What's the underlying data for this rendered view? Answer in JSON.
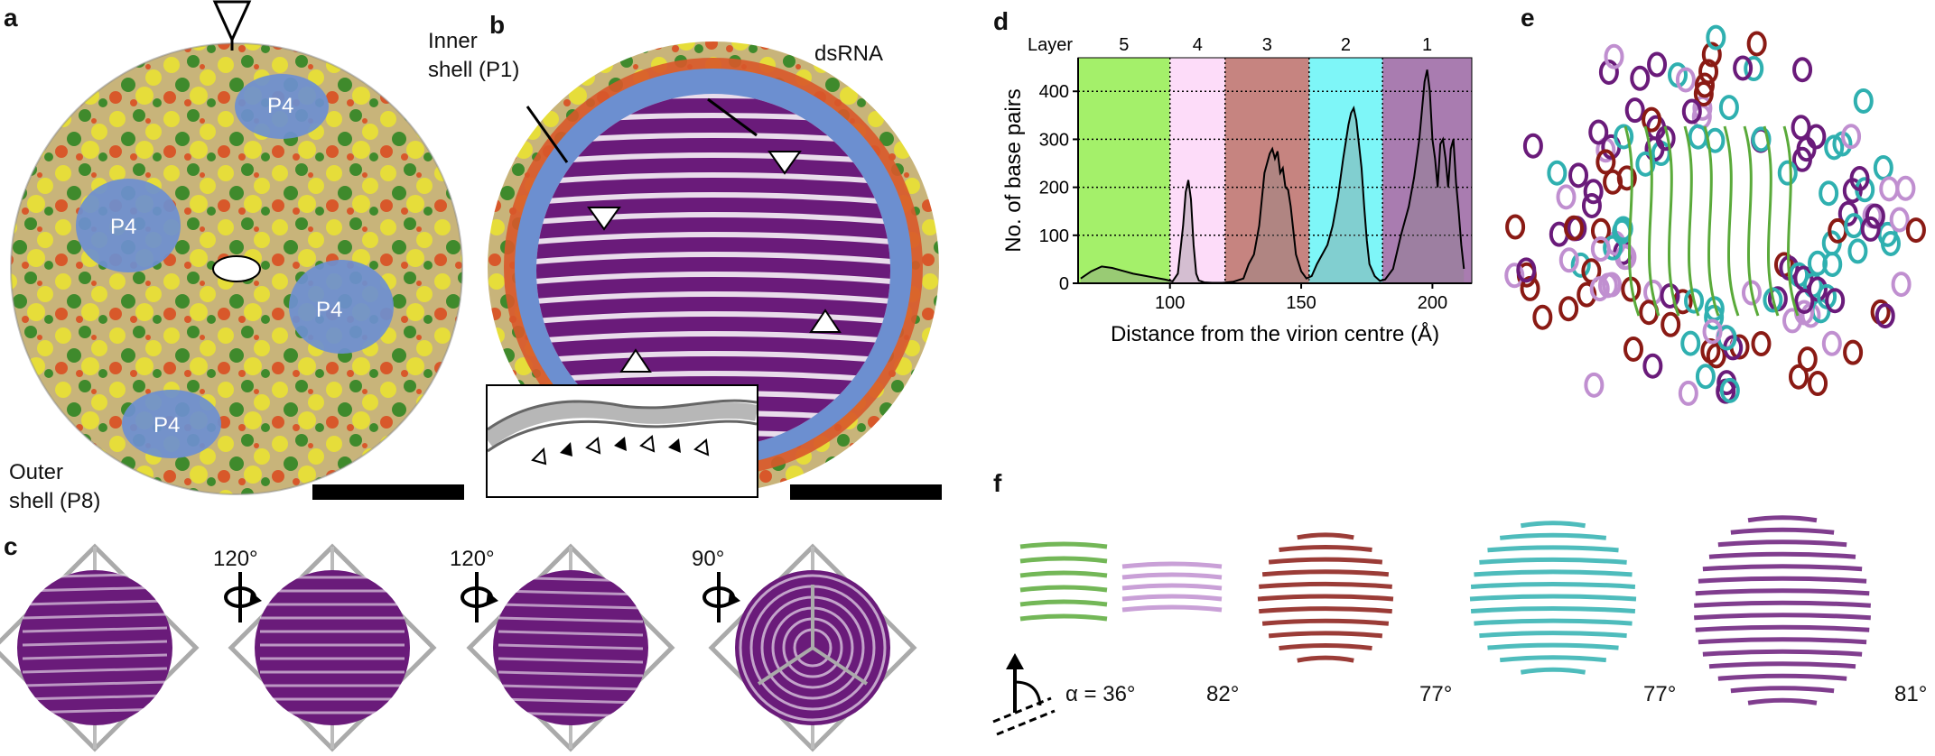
{
  "figure": {
    "panels": {
      "a": {
        "letter": "a",
        "p4_labels": [
          "P4",
          "P4",
          "P4",
          "P4"
        ],
        "outer_shell": [
          "Outer",
          "shell (P8)"
        ]
      },
      "b": {
        "letter": "b",
        "inner_shell": [
          "Inner",
          "shell (P1)"
        ],
        "dsrna": "dsRNA"
      },
      "c": {
        "letter": "c",
        "angles": [
          "120°",
          "120°",
          "90°"
        ]
      },
      "d": {
        "letter": "d"
      },
      "e": {
        "letter": "e"
      },
      "f": {
        "letter": "f",
        "alpha_prefix": "α = 36°",
        "angles": [
          "82°",
          "77°",
          "77°",
          "81°"
        ]
      }
    },
    "colors": {
      "dsrna_purple": "#6a1b7a",
      "p4_blue": "#6c8fd0",
      "yellow": "#e6dd3a",
      "green": "#3f8a2c",
      "orange": "#d8582a",
      "tan": "#c8b47a",
      "green_helix": "#5aaa3a",
      "lilac_helix": "#c08fd0",
      "maroon_helix": "#8a1a14",
      "teal_helix": "#2fb0b0"
    }
  },
  "chart_data": {
    "type": "area",
    "title": "",
    "layer_header": "Layer",
    "layers": [
      {
        "label": "5",
        "from": 65,
        "to": 100,
        "color": "#a4f06a"
      },
      {
        "label": "4",
        "from": 100,
        "to": 121,
        "color": "#fddcf9"
      },
      {
        "label": "3",
        "from": 121,
        "to": 153,
        "color": "#c68480"
      },
      {
        "label": "2",
        "from": 153,
        "to": 181,
        "color": "#7ef6f8"
      },
      {
        "label": "1",
        "from": 181,
        "to": 215,
        "color": "#a97cb0"
      }
    ],
    "xlabel": "Distance from the virion centre (Å)",
    "ylabel": "No. of base pairs",
    "xlim": [
      65,
      215
    ],
    "ylim": [
      0,
      470
    ],
    "xticks": [
      100,
      150,
      200
    ],
    "yticks": [
      0,
      100,
      200,
      300,
      400
    ],
    "grid": "horizontal dotted at y ticks, vertical dotted at layer boundaries",
    "series": [
      {
        "x": [
          66,
          70,
          74,
          78,
          82,
          86,
          90,
          94,
          98,
          101,
          103,
          105,
          106,
          107,
          108,
          109,
          110,
          111,
          113,
          116,
          120,
          124,
          128,
          130,
          132,
          134,
          136,
          138,
          139,
          140,
          141,
          142,
          143,
          144,
          145,
          146,
          147,
          148,
          150,
          152,
          154,
          156,
          158,
          160,
          162,
          164,
          166,
          168,
          169,
          170,
          171,
          172,
          173,
          174,
          175,
          176,
          178,
          180,
          182,
          185,
          188,
          191,
          193,
          195,
          196,
          197,
          198,
          199,
          200,
          201,
          202,
          203,
          204,
          205,
          206,
          207,
          208,
          209,
          210,
          211,
          212
        ],
        "y": [
          10,
          25,
          35,
          32,
          26,
          20,
          16,
          12,
          8,
          4,
          20,
          120,
          190,
          215,
          175,
          80,
          20,
          6,
          2,
          1,
          1,
          3,
          10,
          40,
          60,
          120,
          230,
          270,
          280,
          260,
          275,
          230,
          240,
          200,
          195,
          160,
          110,
          60,
          25,
          10,
          15,
          40,
          60,
          80,
          120,
          180,
          260,
          330,
          355,
          365,
          340,
          290,
          240,
          160,
          90,
          40,
          15,
          5,
          8,
          30,
          100,
          160,
          220,
          300,
          360,
          420,
          445,
          400,
          300,
          260,
          200,
          290,
          300,
          260,
          200,
          280,
          300,
          210,
          150,
          80,
          30
        ]
      }
    ]
  }
}
